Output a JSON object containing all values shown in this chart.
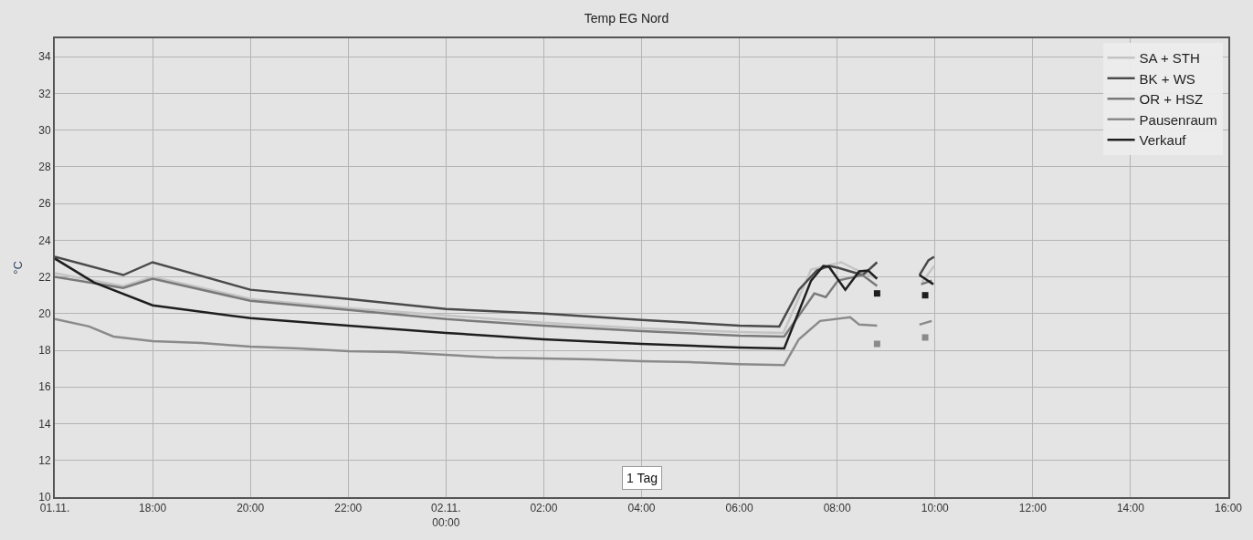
{
  "chart_data": {
    "type": "line",
    "title": "Temp EG Nord",
    "ylabel": "°C",
    "xlim": [
      "--11-01T16:00",
      "--11-02T16:00"
    ],
    "xticks": [
      {
        "value": "--11-01T16:00",
        "label": "01.11."
      },
      {
        "value": "--11-01T18:00",
        "label": "18:00"
      },
      {
        "value": "--11-01T20:00",
        "label": "20:00"
      },
      {
        "value": "--11-01T22:00",
        "label": "22:00"
      },
      {
        "value": "--11-02T00:00",
        "label": "02.11.\n00:00"
      },
      {
        "value": "--11-02T02:00",
        "label": "02:00"
      },
      {
        "value": "--11-02T04:00",
        "label": "04:00"
      },
      {
        "value": "--11-02T06:00",
        "label": "06:00"
      },
      {
        "value": "--11-02T08:00",
        "label": "08:00"
      },
      {
        "value": "--11-02T10:00",
        "label": "10:00"
      },
      {
        "value": "--11-02T12:00",
        "label": "12:00"
      },
      {
        "value": "--11-02T14:00",
        "label": "14:00"
      },
      {
        "value": "--11-02T16:00",
        "label": "16:00"
      }
    ],
    "ylim": [
      10,
      35
    ],
    "yticks": [
      10,
      12,
      14,
      16,
      18,
      20,
      22,
      24,
      26,
      28,
      30,
      32,
      34
    ],
    "grid": true,
    "legend": "top right",
    "marker": "none",
    "line_style": "solid",
    "annotations": [
      "1 Tag"
    ],
    "series": [
      {
        "name": "SA + STH",
        "color": "#c4c4c4",
        "x": [
          "--11-01T16:00",
          "--11-01T17:24",
          "--11-01T18:00",
          "--11-01T20:00",
          "--11-01T22:00",
          "--11-02T00:00",
          "--11-02T02:00",
          "--11-02T04:00",
          "--11-02T06:00",
          "--11-02T06:54",
          "--11-02T07:28",
          "--11-02T08:05",
          "--11-02T08:23",
          "--11-02T08:49",
          "--11-02T09:18",
          "--11-02T09:44",
          "--11-02T09:59"
        ],
        "values": [
          22.2,
          21.5,
          22.0,
          20.8,
          20.3,
          19.9,
          19.5,
          19.2,
          19.0,
          18.95,
          22.4,
          22.8,
          22.4,
          21.9,
          null,
          21.7,
          22.6
        ]
      },
      {
        "name": "BK + WS",
        "color": "#4a4a4a",
        "x": [
          "--11-01T16:00",
          "--11-01T17:24",
          "--11-01T18:00",
          "--11-01T20:00",
          "--11-01T22:00",
          "--11-02T00:00",
          "--11-02T02:00",
          "--11-02T04:00",
          "--11-02T06:00",
          "--11-02T06:49",
          "--11-02T07:13",
          "--11-02T07:35",
          "--11-02T07:50",
          "--11-02T08:01",
          "--11-02T08:16",
          "--11-02T08:31",
          "--11-02T08:38",
          "--11-02T08:49",
          "--11-02T09:18",
          "--11-02T09:41",
          "--11-02T09:52",
          "--11-02T09:59"
        ],
        "values": [
          23.1,
          22.1,
          22.8,
          21.3,
          20.8,
          20.25,
          20.0,
          19.65,
          19.35,
          19.3,
          21.3,
          22.35,
          22.6,
          22.5,
          22.3,
          22.1,
          22.35,
          22.8,
          null,
          22.1,
          22.9,
          23.1
        ]
      },
      {
        "name": "OR + HSZ",
        "color": "#7a7a7a",
        "x": [
          "--11-01T16:00",
          "--11-01T17:24",
          "--11-01T18:00",
          "--11-01T20:00",
          "--11-01T22:00",
          "--11-02T00:00",
          "--11-02T02:00",
          "--11-02T04:00",
          "--11-02T06:00",
          "--11-02T06:55",
          "--11-02T07:32",
          "--11-02T07:46",
          "--11-02T08:01",
          "--11-02T08:31",
          "--11-02T08:49",
          "--11-02T09:18",
          "--11-02T09:43",
          "--11-02T09:56"
        ],
        "values": [
          22.0,
          21.4,
          21.9,
          20.7,
          20.2,
          19.7,
          19.35,
          19.05,
          18.8,
          18.75,
          21.1,
          20.9,
          21.8,
          22.1,
          21.5,
          null,
          21.6,
          21.8
        ]
      },
      {
        "name": "Pausenraum",
        "color": "#8a8a8a",
        "x": [
          "--11-01T16:00",
          "--11-01T16:42",
          "--11-01T17:12",
          "--11-01T18:00",
          "--11-01T19:00",
          "--11-01T20:00",
          "--11-01T21:00",
          "--11-01T22:00",
          "--11-01T23:00",
          "--11-02T00:00",
          "--11-02T01:00",
          "--11-02T02:00",
          "--11-02T03:00",
          "--11-02T04:00",
          "--11-02T05:00",
          "--11-02T06:00",
          "--11-02T06:55",
          "--11-02T07:13",
          "--11-02T07:39",
          "--11-02T08:16",
          "--11-02T08:27",
          "--11-02T08:49",
          "--11-02T09:18",
          "--11-02T09:41",
          "--11-02T09:56"
        ],
        "values": [
          19.7,
          19.3,
          18.75,
          18.5,
          18.4,
          18.2,
          18.1,
          17.95,
          17.9,
          17.75,
          17.6,
          17.55,
          17.5,
          17.4,
          17.35,
          17.25,
          17.2,
          18.6,
          19.6,
          19.8,
          19.4,
          19.35,
          null,
          19.4,
          19.6
        ]
      },
      {
        "name": "Verkauf",
        "color": "#1e1e1e",
        "x": [
          "--11-01T16:00",
          "--11-01T16:48",
          "--11-01T18:00",
          "--11-01T20:00",
          "--11-01T22:00",
          "--11-02T00:00",
          "--11-02T02:00",
          "--11-02T04:00",
          "--11-02T06:00",
          "--11-02T06:55",
          "--11-02T07:28",
          "--11-02T07:43",
          "--11-02T07:50",
          "--11-02T08:10",
          "--11-02T08:27",
          "--11-02T08:38",
          "--11-02T08:49",
          "--11-02T09:18",
          "--11-02T09:41",
          "--11-02T09:58"
        ],
        "values": [
          23.0,
          21.7,
          20.45,
          19.75,
          19.35,
          18.95,
          18.6,
          18.35,
          18.15,
          18.1,
          21.8,
          22.6,
          22.55,
          21.3,
          22.3,
          22.35,
          21.9,
          null,
          22.1,
          21.6
        ]
      },
      {
        "type": "scatter",
        "marker": "square",
        "color": "#1e1e1e",
        "x": [
          "--11-02T08:49",
          "--11-02T09:48"
        ],
        "values": [
          21.1,
          21.0
        ]
      },
      {
        "type": "scatter",
        "marker": "square",
        "color": "#8a8a8a",
        "x": [
          "--11-02T08:49",
          "--11-02T09:48"
        ],
        "values": [
          18.35,
          18.7
        ]
      }
    ]
  }
}
